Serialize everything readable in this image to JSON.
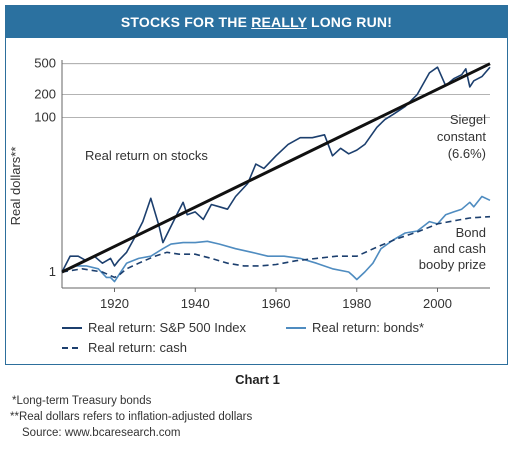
{
  "header": {
    "title_pre": "STOCKS FOR THE ",
    "title_u": "REALLY",
    "title_post": " LONG RUN!"
  },
  "chart_data": {
    "type": "line",
    "title": "STOCKS FOR THE REALLY LONG RUN!",
    "ylabel": "Real dollars**",
    "xlabel": "",
    "y_scale": "log",
    "xlim": [
      1907,
      2013
    ],
    "ylim": [
      0.62,
      900
    ],
    "x_ticks": [
      1920,
      1940,
      1960,
      1980,
      2000
    ],
    "y_ticks": [
      1,
      100,
      200,
      500
    ],
    "grid": "horizontal lines at 100, 200, 500",
    "legend_position": "bottom-left",
    "colors": {
      "stocks": "#1c3f6e",
      "bonds": "#4f8cc0",
      "cash": "#1c3f6e",
      "trend": "#111111"
    },
    "series": [
      {
        "name": "Real return: S&P 500 Index",
        "style": "solid-dark",
        "x": [
          1907,
          1909,
          1911,
          1913,
          1915,
          1917,
          1919,
          1920,
          1921,
          1923,
          1925,
          1927,
          1929,
          1931,
          1932,
          1935,
          1937,
          1938,
          1940,
          1942,
          1944,
          1946,
          1948,
          1950,
          1953,
          1955,
          1957,
          1960,
          1963,
          1966,
          1969,
          1972,
          1974,
          1976,
          1978,
          1980,
          1982,
          1985,
          1987,
          1989,
          1992,
          1995,
          1998,
          2000,
          2002,
          2004,
          2006,
          2007,
          2008,
          2009,
          2011,
          2013
        ],
        "y": [
          1.0,
          1.6,
          1.6,
          1.4,
          1.6,
          1.3,
          1.5,
          1.2,
          1.4,
          1.8,
          2.8,
          4.5,
          9.0,
          4.0,
          2.4,
          5.0,
          8.0,
          5.5,
          6.0,
          4.8,
          7.5,
          7.0,
          6.5,
          9.5,
          14,
          25,
          22,
          32,
          45,
          55,
          55,
          60,
          32,
          40,
          34,
          38,
          45,
          75,
          95,
          110,
          140,
          200,
          380,
          450,
          260,
          320,
          360,
          430,
          250,
          300,
          340,
          450
        ]
      },
      {
        "name": "Real return: bonds*",
        "style": "solid-light",
        "x": [
          1907,
          1910,
          1913,
          1916,
          1918,
          1919,
          1920,
          1921,
          1923,
          1926,
          1929,
          1932,
          1934,
          1937,
          1940,
          1943,
          1946,
          1950,
          1954,
          1958,
          1962,
          1966,
          1970,
          1974,
          1978,
          1979,
          1980,
          1982,
          1984,
          1986,
          1989,
          1992,
          1995,
          1998,
          2000,
          2002,
          2004,
          2006,
          2008,
          2009,
          2011,
          2013
        ],
        "y": [
          1.0,
          1.2,
          1.2,
          1.1,
          0.85,
          0.85,
          0.75,
          0.9,
          1.3,
          1.5,
          1.6,
          2.0,
          2.3,
          2.4,
          2.4,
          2.5,
          2.3,
          2.0,
          1.8,
          1.6,
          1.6,
          1.5,
          1.3,
          1.1,
          1.0,
          0.9,
          0.8,
          1.0,
          1.3,
          2.0,
          2.6,
          3.2,
          3.4,
          4.5,
          4.2,
          5.5,
          6.0,
          6.5,
          8.0,
          7.0,
          9.5,
          8.5
        ]
      },
      {
        "name": "Real return: cash",
        "style": "dashed-dark",
        "x": [
          1907,
          1912,
          1917,
          1920,
          1921,
          1923,
          1926,
          1930,
          1933,
          1936,
          1940,
          1944,
          1948,
          1952,
          1956,
          1960,
          1965,
          1970,
          1975,
          1980,
          1985,
          1990,
          1995,
          2000,
          2005,
          2008,
          2010,
          2013
        ],
        "y": [
          1.0,
          1.1,
          1.0,
          0.85,
          0.9,
          1.1,
          1.3,
          1.6,
          1.8,
          1.7,
          1.7,
          1.5,
          1.3,
          1.2,
          1.2,
          1.25,
          1.4,
          1.5,
          1.6,
          1.6,
          2.1,
          2.7,
          3.3,
          4.2,
          4.7,
          5.0,
          5.1,
          5.2
        ]
      },
      {
        "name": "Siegel constant (6.6%)",
        "style": "trend",
        "x": [
          1907,
          2013
        ],
        "y": [
          1.0,
          500
        ]
      }
    ],
    "annotations": [
      {
        "text": "Real return on stocks"
      },
      {
        "text": "Siegel"
      },
      {
        "text": "constant"
      },
      {
        "text": "(6.6%)"
      },
      {
        "text": "Bond"
      },
      {
        "text": "and cash"
      },
      {
        "text": "booby prize"
      }
    ]
  },
  "legend": [
    {
      "label": "Real return: S&P 500 Index"
    },
    {
      "label": "Real return: bonds*"
    },
    {
      "label": "Real return: cash"
    }
  ],
  "caption": "Chart 1",
  "footnotes": {
    "bonds": "*Long-term Treasury bonds",
    "real_dollars": "**Real dollars refers to inflation-adjusted dollars",
    "source": "Source: www.bcaresearch.com"
  }
}
